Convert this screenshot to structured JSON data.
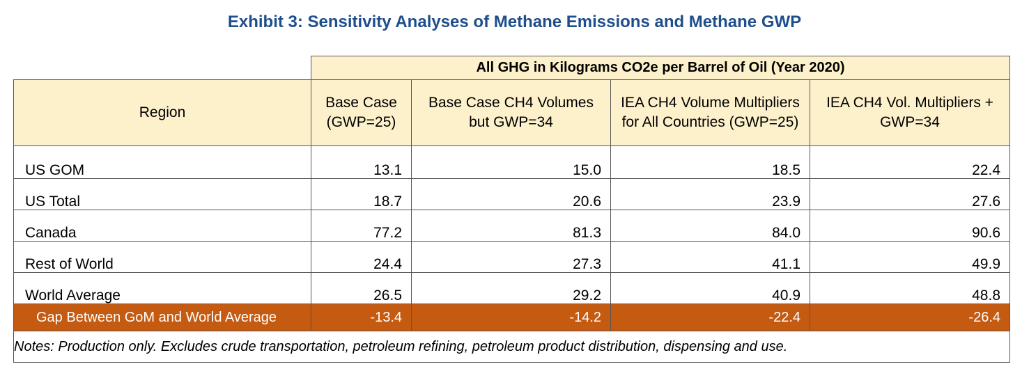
{
  "title": "Exhibit 3: Sensitivity Analyses of Methane Emissions and Methane GWP",
  "table": {
    "group_header": "All GHG in Kilograms CO2e per Barrel of Oil (Year 2020)",
    "region_header": "Region",
    "columns": [
      {
        "line1": "Base Case",
        "line2": "(GWP=25)"
      },
      {
        "line1": "Base Case CH4 Volumes",
        "line2": "but GWP=34"
      },
      {
        "line1": "IEA CH4 Volume Multipliers",
        "line2": "for All Countries (GWP=25)"
      },
      {
        "line1": "IEA CH4 Vol. Multipliers +",
        "line2": "GWP=34"
      }
    ],
    "rows": [
      {
        "region": "US GOM",
        "values": [
          "13.1",
          "15.0",
          "18.5",
          "22.4"
        ]
      },
      {
        "region": "US Total",
        "values": [
          "18.7",
          "20.6",
          "23.9",
          "27.6"
        ]
      },
      {
        "region": "Canada",
        "values": [
          "77.2",
          "81.3",
          "84.0",
          "90.6"
        ]
      },
      {
        "region": "Rest of World",
        "values": [
          "24.4",
          "27.3",
          "41.1",
          "49.9"
        ]
      },
      {
        "region": "World Average",
        "values": [
          "26.5",
          "29.2",
          "40.9",
          "48.8"
        ]
      }
    ],
    "gap_row": {
      "label": "Gap Between GoM and World Average",
      "values": [
        "-13.4",
        "-14.2",
        "-22.4",
        "-26.4"
      ]
    },
    "notes": "Notes: Production only. Excludes crude transportation, petroleum refining, petroleum product distribution, dispensing and use."
  },
  "colors": {
    "title": "#1f4e8c",
    "header_fill": "#fdf1cc",
    "gap_fill": "#c55a11",
    "gap_text": "#ffffff"
  }
}
